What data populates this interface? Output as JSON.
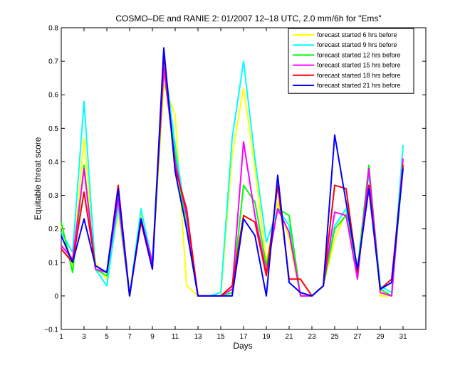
{
  "chart_data": {
    "type": "line",
    "title": "COSMO–DE and RANIE 2: 01/2007 12–18 UTC, 2.0 mm/6h for \"Ems\"",
    "xlabel": "Days",
    "ylabel": "Equitable threat score",
    "xlim": [
      1,
      33
    ],
    "ylim": [
      -0.1,
      0.8
    ],
    "x_ticks": [
      1,
      3,
      5,
      7,
      9,
      11,
      13,
      15,
      17,
      19,
      21,
      23,
      25,
      27,
      29,
      31
    ],
    "y_ticks": [
      -0.1,
      0,
      0.1,
      0.2,
      0.3,
      0.4,
      0.5,
      0.6,
      0.7,
      0.8
    ],
    "y_tick_labels": [
      "−0.1",
      "0",
      "0.1",
      "0.2",
      "0.3",
      "0.4",
      "0.5",
      "0.6",
      "0.7",
      "0.8"
    ],
    "grid": false,
    "legend_position": "top-right",
    "x": [
      1,
      2,
      3,
      4,
      5,
      6,
      7,
      8,
      9,
      10,
      11,
      12,
      13,
      14,
      15,
      16,
      17,
      18,
      19,
      20,
      21,
      22,
      23,
      24,
      25,
      26,
      27,
      28,
      29,
      30,
      31
    ],
    "series": [
      {
        "name": "forecast started 6 hrs before",
        "color": "#ffff00",
        "values": [
          0.21,
          0.09,
          0.47,
          0.1,
          0.05,
          0.25,
          0.0,
          0.25,
          0.09,
          0.63,
          0.54,
          0.03,
          0.0,
          0.0,
          0.0,
          0.42,
          0.62,
          0.38,
          0.1,
          0.28,
          0.17,
          0.0,
          0.0,
          0.03,
          0.17,
          0.25,
          0.07,
          0.38,
          0.0,
          0.0,
          0.41
        ]
      },
      {
        "name": "forecast started 9 hrs before",
        "color": "#00ffff",
        "values": [
          0.19,
          0.13,
          0.58,
          0.08,
          0.03,
          0.27,
          0.0,
          0.26,
          0.1,
          0.71,
          0.45,
          0.22,
          0.0,
          0.0,
          0.01,
          0.47,
          0.7,
          0.41,
          0.16,
          0.26,
          0.21,
          0.0,
          0.0,
          0.03,
          0.21,
          0.26,
          0.06,
          0.37,
          0.03,
          0.01,
          0.45
        ]
      },
      {
        "name": "forecast started 12 hrs before",
        "color": "#00ff00",
        "values": [
          0.22,
          0.07,
          0.39,
          0.08,
          0.06,
          0.3,
          0.0,
          0.23,
          0.09,
          0.67,
          0.42,
          0.2,
          0.0,
          0.0,
          0.0,
          0.01,
          0.33,
          0.28,
          0.09,
          0.26,
          0.24,
          0.0,
          0.0,
          0.03,
          0.2,
          0.24,
          0.08,
          0.39,
          0.02,
          0.0,
          0.39
        ]
      },
      {
        "name": "forecast started 15 hrs before",
        "color": "#ff00ff",
        "values": [
          0.15,
          0.11,
          0.38,
          0.08,
          0.07,
          0.29,
          0.0,
          0.23,
          0.1,
          0.68,
          0.4,
          0.24,
          0.0,
          0.0,
          0.0,
          0.02,
          0.46,
          0.24,
          0.07,
          0.26,
          0.19,
          0.0,
          0.0,
          0.03,
          0.25,
          0.24,
          0.05,
          0.38,
          0.01,
          0.0,
          0.41
        ]
      },
      {
        "name": "forecast started 18 hrs before",
        "color": "#ff0000",
        "values": [
          0.14,
          0.1,
          0.31,
          0.09,
          0.07,
          0.33,
          0.0,
          0.22,
          0.08,
          0.72,
          0.38,
          0.26,
          0.0,
          0.0,
          0.0,
          0.03,
          0.24,
          0.22,
          0.06,
          0.33,
          0.05,
          0.05,
          0.0,
          0.03,
          0.33,
          0.32,
          0.07,
          0.33,
          0.02,
          0.05,
          0.39
        ]
      },
      {
        "name": "forecast started 21 hrs before",
        "color": "#0000ff",
        "values": [
          0.18,
          0.1,
          0.23,
          0.09,
          0.07,
          0.32,
          0.0,
          0.23,
          0.08,
          0.74,
          0.37,
          0.2,
          0.0,
          0.0,
          0.0,
          0.0,
          0.23,
          0.18,
          0.0,
          0.36,
          0.04,
          0.01,
          0.0,
          0.03,
          0.48,
          0.28,
          0.08,
          0.32,
          0.02,
          0.04,
          0.38
        ]
      }
    ]
  }
}
